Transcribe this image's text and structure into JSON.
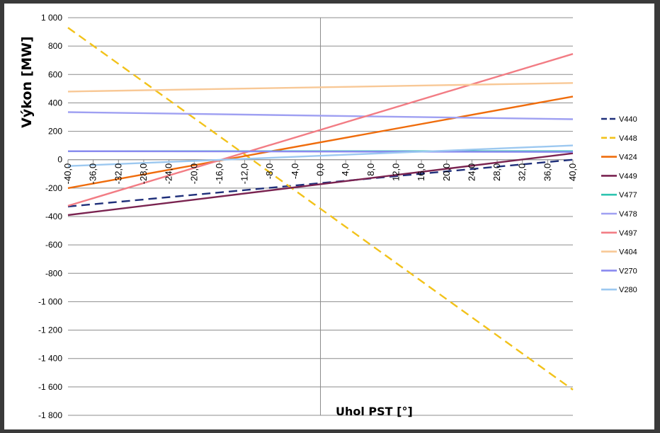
{
  "chart_data": {
    "type": "line",
    "xlabel": "Uhol PST [°]",
    "ylabel": "Výkon [MW]",
    "ylim": [
      -1800,
      1000
    ],
    "xlim": [
      -40,
      40
    ],
    "y_ticks": [
      1000,
      800,
      600,
      400,
      200,
      0,
      -200,
      -400,
      -600,
      -800,
      -1000,
      -1200,
      -1400,
      -1600,
      -1800
    ],
    "y_tick_labels": [
      "1 000",
      "800",
      "600",
      "400",
      "200",
      "0",
      "-200",
      "-400",
      "-600",
      "-800",
      "-1 000",
      "-1 200",
      "-1 400",
      "-1 600",
      "-1 800"
    ],
    "x_ticks": [
      -40,
      -36,
      -32,
      -28,
      -24,
      -20,
      -16,
      -12,
      -8,
      -4,
      0,
      4,
      8,
      12,
      16,
      20,
      24,
      28,
      32,
      36,
      40
    ],
    "x_tick_labels": [
      "-40,0",
      "-36,0",
      "-32,0",
      "-28,0",
      "-24,0",
      "-20,0",
      "-16,0",
      "-12,0",
      "-8,0",
      "-4,0",
      "0,0",
      "4,0",
      "8,0",
      "12,0",
      "16,0",
      "20,0",
      "24,0",
      "28,0",
      "32,0",
      "36,0",
      "40,0"
    ],
    "grid": true,
    "legend_position": "right",
    "series": [
      {
        "name": "V440",
        "color": "#1f2f7a",
        "dash": "dashed",
        "x": [
          -40,
          40
        ],
        "y": [
          -330,
          0
        ]
      },
      {
        "name": "V448",
        "color": "#f2c21a",
        "dash": "dashed",
        "x": [
          -40,
          40
        ],
        "y": [
          930,
          -1620
        ]
      },
      {
        "name": "V424",
        "color": "#ef6c0c",
        "dash": "solid",
        "x": [
          -40,
          40
        ],
        "y": [
          -200,
          445
        ]
      },
      {
        "name": "V449",
        "color": "#7a2350",
        "dash": "solid",
        "x": [
          -40,
          40
        ],
        "y": [
          -390,
          45
        ]
      },
      {
        "name": "V477",
        "color": "#2ec4b0",
        "dash": "solid",
        "x": [
          -40,
          40
        ],
        "y": [
          60,
          60
        ]
      },
      {
        "name": "V478",
        "color": "#9fa0f2",
        "dash": "solid",
        "x": [
          -40,
          40
        ],
        "y": [
          335,
          285
        ]
      },
      {
        "name": "V497",
        "color": "#f27c84",
        "dash": "solid",
        "x": [
          -40,
          40
        ],
        "y": [
          -325,
          745
        ]
      },
      {
        "name": "V404",
        "color": "#f8c896",
        "dash": "solid",
        "x": [
          -40,
          40
        ],
        "y": [
          480,
          540
        ]
      },
      {
        "name": "V270",
        "color": "#8a8aef",
        "dash": "solid",
        "x": [
          -40,
          40
        ],
        "y": [
          60,
          55
        ]
      },
      {
        "name": "V280",
        "color": "#9cc8f0",
        "dash": "solid",
        "x": [
          -40,
          40
        ],
        "y": [
          -45,
          100
        ]
      }
    ]
  }
}
